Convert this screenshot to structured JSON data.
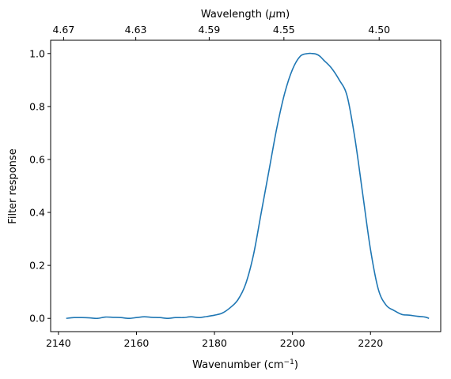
{
  "chart_data": {
    "type": "line",
    "xlabel": "Wavenumber (cm",
    "xlabel_sup": "−1",
    "xlabel_close": ")",
    "ylabel": "Filter response",
    "top_xlabel": "Wavelength (",
    "top_xlabel_mu": "μ",
    "top_xlabel_close": "m)",
    "xlim": [
      2138,
      2238
    ],
    "ylim": [
      -0.05,
      1.05
    ],
    "x_ticks": [
      2140,
      2160,
      2180,
      2200,
      2220
    ],
    "y_ticks": [
      0.0,
      0.2,
      0.4,
      0.6,
      0.8,
      1.0
    ],
    "top_ticks": [
      "4.67",
      "4.63",
      "4.59",
      "4.55",
      "4.50"
    ],
    "color": "#1f77b4",
    "series": [
      {
        "x": [
          2142,
          2144,
          2146,
          2148,
          2150,
          2152,
          2154,
          2156,
          2158,
          2160,
          2162,
          2164,
          2166,
          2168,
          2170,
          2172,
          2174,
          2176,
          2178,
          2180,
          2182,
          2184,
          2186,
          2188,
          2190,
          2192,
          2194,
          2196,
          2198,
          2200,
          2202,
          2204,
          2205,
          2206,
          2207,
          2208,
          2210,
          2212,
          2214,
          2216,
          2218,
          2220,
          2222,
          2224,
          2226,
          2228,
          2230,
          2232,
          2234,
          2235
        ],
        "y": [
          0.0,
          0.003,
          0.003,
          0.002,
          0.0,
          0.005,
          0.004,
          0.003,
          0.0,
          0.003,
          0.006,
          0.004,
          0.003,
          0.0,
          0.003,
          0.003,
          0.006,
          0.003,
          0.007,
          0.012,
          0.02,
          0.04,
          0.07,
          0.13,
          0.24,
          0.4,
          0.56,
          0.72,
          0.85,
          0.94,
          0.99,
          1.0,
          1.0,
          0.998,
          0.99,
          0.975,
          0.945,
          0.9,
          0.84,
          0.68,
          0.47,
          0.26,
          0.11,
          0.05,
          0.03,
          0.015,
          0.012,
          0.008,
          0.005,
          0.0
        ]
      }
    ]
  }
}
